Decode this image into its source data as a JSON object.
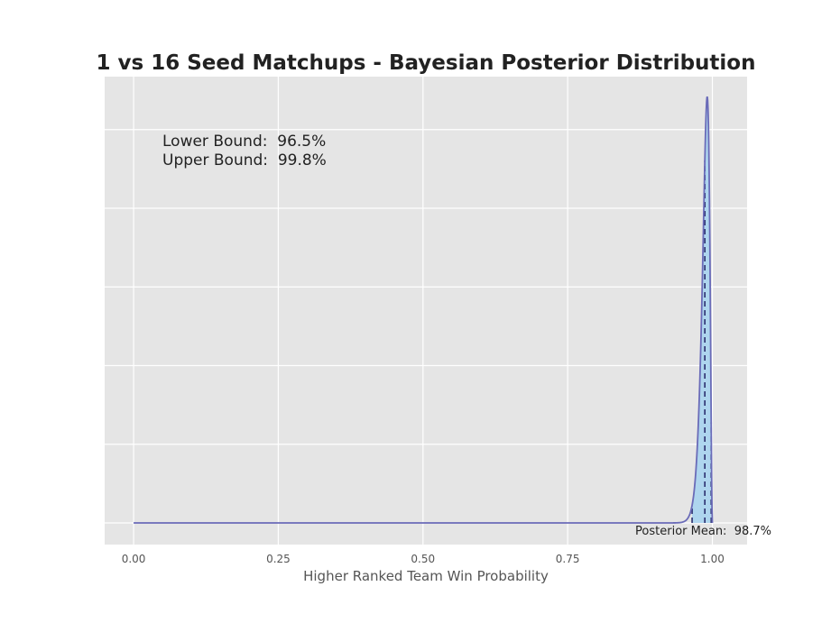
{
  "chart_data": {
    "type": "area",
    "title": "1 vs 16 Seed Matchups - Bayesian Posterior Distribution",
    "xlabel": "Higher Ranked Team Win Probability",
    "ylabel": "",
    "xlim": [
      -0.05,
      1.06
    ],
    "x_ticks": [
      0.0,
      0.25,
      0.5,
      0.75,
      1.0
    ],
    "x_tick_labels": [
      "0.00",
      "0.25",
      "0.50",
      "0.75",
      "1.00"
    ],
    "grid": true,
    "distribution": {
      "family": "beta",
      "alpha": 223,
      "beta": 3
    },
    "credible_interval": {
      "lower": 0.965,
      "upper": 0.998,
      "lower_label": "Lower Bound:  96.5%",
      "upper_label": "Upper Bound:  99.8%"
    },
    "posterior_mean": {
      "value": 0.987,
      "label": "Posterior Mean:  98.7%"
    },
    "colors": {
      "plot_background": "#e5e5e5",
      "grid": "#ffffff",
      "curve": "#6a6bb8",
      "fill": "#a7d3ee",
      "dashed": "#2b2f6e"
    }
  }
}
